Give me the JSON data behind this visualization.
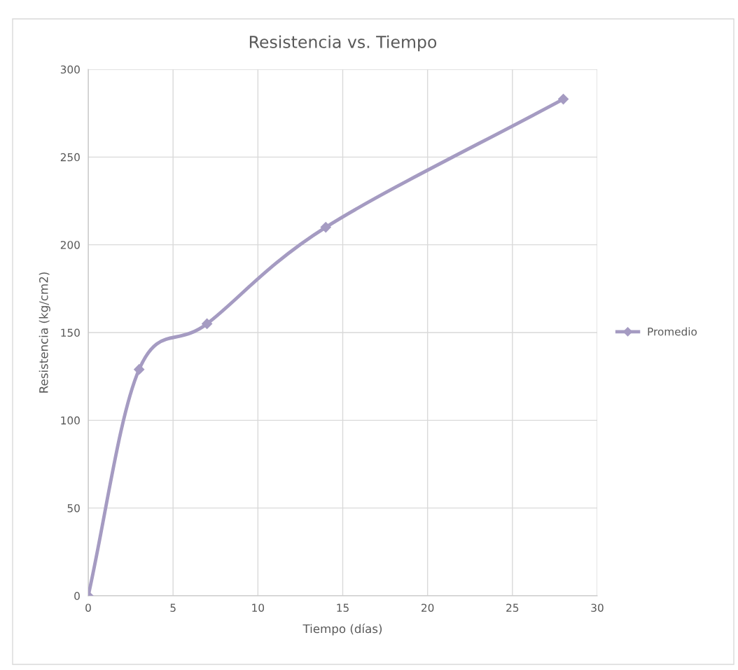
{
  "chart_data": {
    "type": "line",
    "title": "Resistencia vs. Tiempo",
    "xlabel": "Tiempo (días)",
    "ylabel": "Resistencia (kg/cm2)",
    "series": [
      {
        "name": "Promedio",
        "color": "#a59bc2",
        "x": [
          0,
          3,
          7,
          14,
          28
        ],
        "values": [
          0,
          129,
          155,
          210,
          283
        ]
      }
    ],
    "xlim": [
      0,
      30
    ],
    "xticks": [
      0,
      5,
      10,
      15,
      20,
      25,
      30
    ],
    "ylim": [
      0,
      300
    ],
    "yticks": [
      0,
      50,
      100,
      150,
      200,
      250,
      300
    ],
    "grid": true,
    "legend": "right",
    "marker": "diamond",
    "line_style": "solid"
  }
}
